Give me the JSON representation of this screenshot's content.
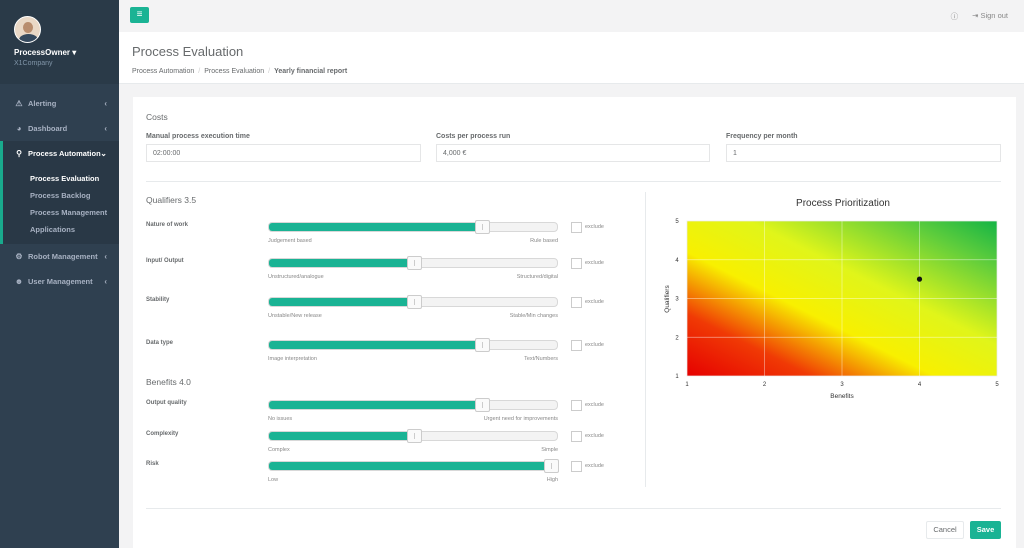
{
  "user": {
    "name": "ProcessOwner",
    "company": "X1Company",
    "caret": "▾"
  },
  "sidebar": {
    "items": [
      {
        "label": "Alerting",
        "icon": "warning-icon"
      },
      {
        "label": "Dashboard",
        "icon": "pie-chart-icon"
      },
      {
        "label": "Process Automation",
        "icon": "sitemap-icon"
      },
      {
        "label": "Robot Management",
        "icon": "robot-icon"
      },
      {
        "label": "User Management",
        "icon": "users-icon"
      }
    ],
    "sub_items": [
      "Process Evaluation",
      "Process Backlog",
      "Process Management",
      "Applications"
    ]
  },
  "topbar": {
    "sign_out": "Sign out",
    "menu_icon": "hamburger-icon"
  },
  "header": {
    "title": "Process Evaluation",
    "breadcrumb": [
      "Process Automation",
      "Process Evaluation",
      "Yearly financial report"
    ]
  },
  "costs": {
    "title": "Costs",
    "fields": [
      {
        "label": "Manual process execution time",
        "value": "02:00:00"
      },
      {
        "label": "Costs per process run",
        "value": "4,000 €"
      },
      {
        "label": "Frequency per month",
        "value": "1"
      }
    ]
  },
  "qualifiers": {
    "title": "Qualifiers 3.5",
    "items": [
      {
        "label": "Nature of work",
        "left": "Judgement based",
        "right": "Rule based",
        "value": 0.75,
        "exclude": "exclude"
      },
      {
        "label": "Input/ Output",
        "left": "Unstructured/analogue",
        "right": "Structured/digital",
        "value": 0.5,
        "exclude": "exclude"
      },
      {
        "label": "Stability",
        "left": "Unstable/New release",
        "right": "Stable/Min changes",
        "value": 0.5,
        "exclude": "exclude"
      },
      {
        "label": "Data type",
        "left": "Image interpretation",
        "right": "Text/Numbers",
        "value": 0.75,
        "exclude": "exclude"
      }
    ]
  },
  "benefits": {
    "title": "Benefits 4.0",
    "items": [
      {
        "label": "Output quality",
        "left": "No issues",
        "right": "Urgent need for improvements",
        "value": 0.75,
        "exclude": "exclude"
      },
      {
        "label": "Complexity",
        "left": "Complex",
        "right": "Simple",
        "value": 0.5,
        "exclude": "exclude"
      },
      {
        "label": "Risk",
        "left": "Low",
        "right": "High",
        "value": 1.0,
        "exclude": "exclude"
      }
    ]
  },
  "chart_data": {
    "type": "scatter",
    "title": "Process Prioritization",
    "xlabel": "Benefits",
    "ylabel": "Qualifiers",
    "xlim": [
      1,
      5
    ],
    "ylim": [
      1,
      5
    ],
    "xticks": [
      "1",
      "2",
      "3",
      "4",
      "5"
    ],
    "yticks": [
      "1",
      "2",
      "3",
      "4",
      "5"
    ],
    "points": [
      {
        "x": 4.0,
        "y": 3.5
      }
    ],
    "grid": true,
    "background": "red-yellow-green gradient"
  },
  "buttons": {
    "cancel": "Cancel",
    "save": "Save"
  },
  "colors": {
    "accent": "#1ab394",
    "sidebar": "#2f4050"
  }
}
